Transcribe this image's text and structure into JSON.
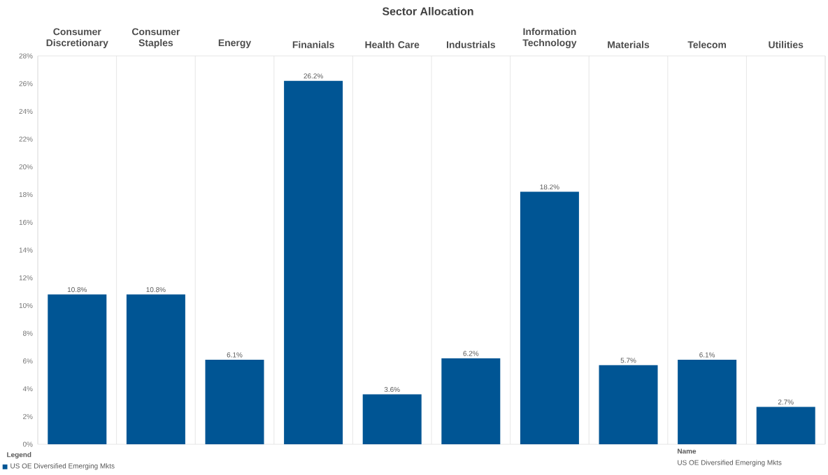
{
  "chart_data": {
    "type": "bar",
    "title": "Sector Allocation",
    "categories": [
      "Consumer Discretionary",
      "Consumer Staples",
      "Energy",
      "Finanials",
      "Health Care",
      "Industrials",
      "Information Technology",
      "Materials",
      "Telecom",
      "Utilities"
    ],
    "series": [
      {
        "name": "US OE Diversified Emerging Mkts",
        "color": "#005594",
        "values": [
          10.8,
          10.8,
          6.1,
          26.2,
          3.6,
          6.2,
          18.2,
          5.7,
          6.1,
          2.7
        ],
        "value_labels": [
          "10.8%",
          "10.8%",
          "6.1%",
          "26.2%",
          "3.6%",
          "6.2%",
          "18.2%",
          "5.7%",
          "6.1%",
          "2.7%"
        ]
      }
    ],
    "ylim": [
      0,
      28
    ],
    "yticks": [
      {
        "value": 0,
        "label": "0%"
      },
      {
        "value": 2,
        "label": "2%"
      },
      {
        "value": 4,
        "label": "4%"
      },
      {
        "value": 6,
        "label": "6%"
      },
      {
        "value": 8,
        "label": "8%"
      },
      {
        "value": 10,
        "label": "10%"
      },
      {
        "value": 12,
        "label": "12%"
      },
      {
        "value": 14,
        "label": "14%"
      },
      {
        "value": 16,
        "label": "16%"
      },
      {
        "value": 18,
        "label": "18%"
      },
      {
        "value": 20,
        "label": "20%"
      },
      {
        "value": 22,
        "label": "22%"
      },
      {
        "value": 24,
        "label": "24%"
      },
      {
        "value": 26,
        "label": "26%"
      },
      {
        "value": 28,
        "label": "28%"
      }
    ],
    "grid": "x",
    "legend": "bottom left",
    "legend_title": "Legend",
    "annotations": [
      "Name",
      "US OE Diversified Emerging Mkts"
    ]
  }
}
